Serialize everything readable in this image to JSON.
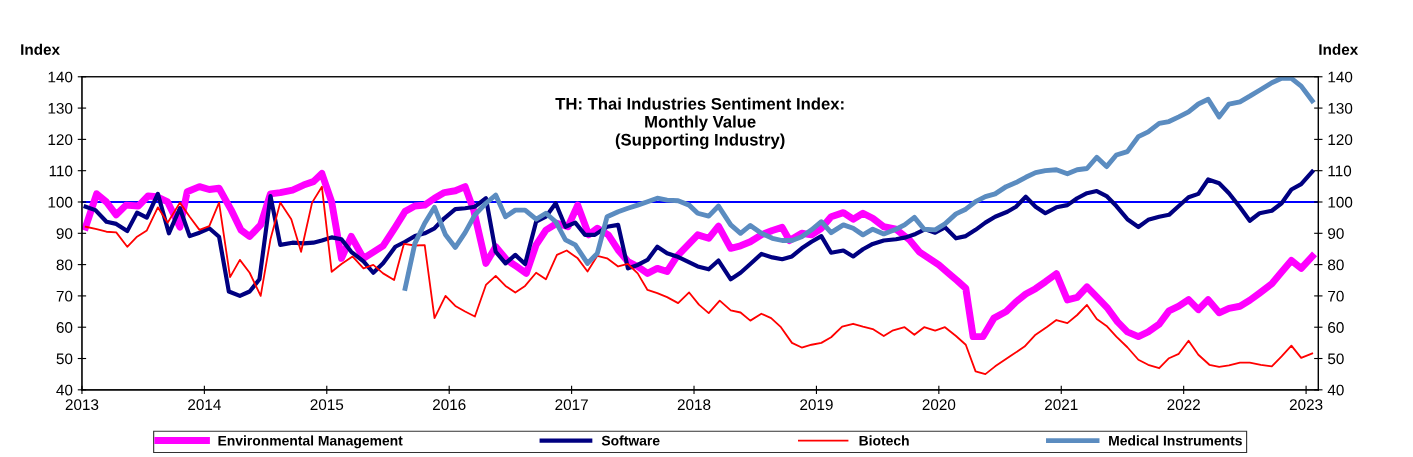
{
  "chart_data": {
    "type": "line",
    "title": "TH: Thai Industries Sentiment Index:\nMonthly Value\n(Supporting Industry)",
    "ylabel": "Index",
    "y2label": "Index",
    "xlim": [
      2013,
      2023.1
    ],
    "xticks": [
      2013,
      2014,
      2015,
      2016,
      2017,
      2018,
      2019,
      2020,
      2021,
      2022,
      2023
    ],
    "ylim": [
      40,
      140
    ],
    "yticks": [
      40,
      50,
      60,
      70,
      80,
      90,
      100,
      110,
      120,
      130,
      140
    ],
    "y2lim": [
      40,
      140
    ],
    "y2ticks": [
      40,
      50,
      60,
      70,
      80,
      90,
      100,
      110,
      120,
      130,
      140
    ],
    "grid": false,
    "legend": "bottom",
    "marker": "none",
    "line_style": "solid",
    "ref_lines": [
      {
        "axis": "y",
        "value": 100,
        "color": "#0000ff"
      }
    ],
    "series": [
      {
        "name": "Environmental Management",
        "color": "#ff00ff",
        "x": [
          2013.03,
          2013.12,
          2013.2,
          2013.28,
          2013.36,
          2013.46,
          2013.54,
          2013.61,
          2013.7,
          2013.8,
          2013.86,
          2013.96,
          2014.04,
          2014.12,
          2014.22,
          2014.3,
          2014.37,
          2014.46,
          2014.54,
          2014.62,
          2014.72,
          2014.81,
          2014.89,
          2014.96,
          2015.04,
          2015.12,
          2015.2,
          2015.3,
          2015.38,
          2015.46,
          2015.56,
          2015.64,
          2015.72,
          2015.8,
          2015.88,
          2015.96,
          2016.05,
          2016.13,
          2016.2,
          2016.3,
          2016.38,
          2016.47,
          2016.55,
          2016.63,
          2016.71,
          2016.79,
          2016.88,
          2016.97,
          2017.05,
          2017.14,
          2017.21,
          2017.3,
          2017.38,
          2017.46,
          2017.54,
          2017.62,
          2017.7,
          2017.78,
          2017.86,
          2018.03,
          2018.12,
          2018.2,
          2018.3,
          2018.38,
          2018.46,
          2018.55,
          2018.64,
          2018.72,
          2018.78,
          2018.88,
          2018.96,
          2019.04,
          2019.12,
          2019.22,
          2019.3,
          2019.38,
          2019.46,
          2019.55,
          2019.65,
          2019.76,
          2019.84,
          2019.92,
          2020.0,
          2020.08,
          2020.15,
          2020.22,
          2020.28,
          2020.36,
          2020.45,
          2020.55,
          2020.63,
          2020.71,
          2020.79,
          2020.87,
          2020.96,
          2021.05,
          2021.13,
          2021.21,
          2021.29,
          2021.38,
          2021.46,
          2021.54,
          2021.63,
          2021.71,
          2021.8,
          2021.88,
          2021.96,
          2022.04,
          2022.12,
          2022.2,
          2022.29,
          2022.37,
          2022.46,
          2022.54,
          2022.62,
          2022.72,
          2022.8,
          2022.88,
          2022.96,
          2023.05
        ],
        "values": [
          92,
          102.6,
          100,
          95.9,
          99,
          98.7,
          101.9,
          101.7,
          100,
          92,
          103.3,
          104.9,
          104,
          104.4,
          97.4,
          91,
          89,
          92.7,
          102.6,
          103,
          103.8,
          105.4,
          106.5,
          109.1,
          100,
          82,
          89,
          82,
          84,
          86,
          92,
          97,
          98.7,
          99,
          101.2,
          103,
          103.6,
          104.9,
          97.4,
          80.4,
          85.7,
          81.5,
          79.4,
          77.2,
          86.3,
          91,
          93.2,
          92.1,
          99,
          89.5,
          91.6,
          89.5,
          84.7,
          81,
          79.4,
          77.2,
          78.8,
          77.8,
          82.6,
          89.5,
          88.4,
          92.3,
          85.2,
          86,
          87.3,
          89.5,
          90.9,
          91.9,
          87.7,
          90,
          89.5,
          91.6,
          95.3,
          96.6,
          94.5,
          96.4,
          94.8,
          92.1,
          91.3,
          87.9,
          84.1,
          82,
          79.9,
          77.2,
          74.9,
          72.4,
          57,
          57,
          62.9,
          65,
          68.1,
          70.6,
          72.3,
          74.5,
          77.1,
          68.7,
          69.5,
          72.9,
          69.7,
          66,
          61.7,
          58.5,
          57,
          58.5,
          61,
          65.2,
          66.7,
          68.8,
          65.6,
          68.8,
          64.6,
          66,
          66.7,
          68.6,
          70.9,
          73.9,
          77.6,
          81.3,
          78.8,
          82.6
        ]
      },
      {
        "name": "Software",
        "color": "#000080",
        "x": [
          2013.03,
          2013.11,
          2013.2,
          2013.28,
          2013.37,
          2013.45,
          2013.53,
          2013.62,
          2013.71,
          2013.8,
          2013.88,
          2013.96,
          2014.04,
          2014.12,
          2014.2,
          2014.29,
          2014.37,
          2014.45,
          2014.54,
          2014.62,
          2014.72,
          2014.81,
          2014.89,
          2014.96,
          2015.04,
          2015.12,
          2015.2,
          2015.3,
          2015.38,
          2015.46,
          2015.56,
          2015.64,
          2015.72,
          2015.8,
          2015.88,
          2015.96,
          2016.05,
          2016.13,
          2016.21,
          2016.3,
          2016.38,
          2016.46,
          2016.54,
          2016.62,
          2016.71,
          2016.79,
          2016.87,
          2016.95,
          2017.03,
          2017.11,
          2017.19,
          2017.29,
          2017.38,
          2017.46,
          2017.54,
          2017.62,
          2017.7,
          2017.78,
          2017.86,
          2018.03,
          2018.12,
          2018.2,
          2018.3,
          2018.38,
          2018.46,
          2018.55,
          2018.64,
          2018.72,
          2018.8,
          2018.88,
          2018.96,
          2019.04,
          2019.12,
          2019.22,
          2019.3,
          2019.38,
          2019.46,
          2019.55,
          2019.65,
          2019.73,
          2019.81,
          2019.89,
          2019.97,
          2020.05,
          2020.14,
          2020.22,
          2020.3,
          2020.38,
          2020.46,
          2020.56,
          2020.63,
          2020.71,
          2020.79,
          2020.87,
          2020.96,
          2021.05,
          2021.13,
          2021.21,
          2021.29,
          2021.37,
          2021.45,
          2021.54,
          2021.63,
          2021.71,
          2021.8,
          2021.88,
          2021.96,
          2022.04,
          2022.12,
          2022.2,
          2022.29,
          2022.37,
          2022.46,
          2022.54,
          2022.62,
          2022.72,
          2022.8,
          2022.88,
          2022.96,
          2023.05
        ],
        "values": [
          98.5,
          97.4,
          93.7,
          93,
          90.7,
          96.6,
          95,
          102.6,
          90,
          98,
          89.1,
          90.2,
          91.6,
          88.9,
          71.4,
          70,
          71.4,
          75.3,
          101.9,
          86.3,
          87,
          86.8,
          87,
          87.7,
          88.7,
          88.1,
          84.1,
          81,
          77.4,
          80.4,
          85.7,
          87.3,
          89.1,
          90,
          91.6,
          94.8,
          97.7,
          98,
          98.5,
          101.2,
          84.1,
          80.4,
          83.1,
          80.2,
          93.7,
          95.3,
          99.6,
          92.1,
          93.4,
          89.5,
          89.5,
          92.1,
          92.7,
          78.8,
          79.9,
          81.5,
          85.7,
          83.6,
          82.6,
          79.4,
          78.5,
          81.3,
          75.3,
          77.4,
          80.2,
          83.4,
          82.3,
          81.7,
          82.6,
          85.2,
          87.3,
          89.1,
          83.8,
          84.5,
          82.6,
          84.9,
          86.6,
          87.7,
          88.1,
          88.7,
          89.8,
          91.3,
          90.2,
          91.9,
          88.4,
          89.1,
          91.1,
          93.4,
          95.3,
          96.9,
          98.5,
          101.7,
          98.5,
          96.4,
          98.3,
          99,
          101.2,
          102.8,
          103.5,
          101.9,
          98.7,
          94.5,
          92,
          94.3,
          95.3,
          95.9,
          98.7,
          101.5,
          102.6,
          107.2,
          106,
          102.8,
          98.3,
          94,
          96.4,
          97.2,
          99.6,
          104,
          105.7,
          109.7
        ]
      },
      {
        "name": "Biotech",
        "color": "#ff0000",
        "x": [
          2013.03,
          2013.12,
          2013.2,
          2013.28,
          2013.37,
          2013.45,
          2013.53,
          2013.62,
          2013.7,
          2013.8,
          2013.88,
          2013.96,
          2014.04,
          2014.12,
          2014.21,
          2014.29,
          2014.37,
          2014.46,
          2014.54,
          2014.62,
          2014.71,
          2014.79,
          2014.88,
          2014.96,
          2015.04,
          2015.12,
          2015.21,
          2015.3,
          2015.38,
          2015.46,
          2015.55,
          2015.63,
          2015.72,
          2015.8,
          2015.88,
          2015.97,
          2016.05,
          2016.13,
          2016.21,
          2016.3,
          2016.38,
          2016.46,
          2016.54,
          2016.62,
          2016.71,
          2016.79,
          2016.88,
          2016.96,
          2017.05,
          2017.13,
          2017.21,
          2017.29,
          2017.38,
          2017.46,
          2017.54,
          2017.62,
          2017.7,
          2017.78,
          2017.87,
          2017.96,
          2018.04,
          2018.12,
          2018.21,
          2018.3,
          2018.38,
          2018.46,
          2018.55,
          2018.63,
          2018.71,
          2018.8,
          2018.88,
          2018.96,
          2019.04,
          2019.12,
          2019.21,
          2019.3,
          2019.38,
          2019.46,
          2019.55,
          2019.62,
          2019.72,
          2019.8,
          2019.88,
          2019.97,
          2020.05,
          2020.14,
          2020.22,
          2020.3,
          2020.38,
          2020.46,
          2020.6,
          2020.7,
          2020.79,
          2020.88,
          2020.96,
          2021.05,
          2021.13,
          2021.21,
          2021.29,
          2021.37,
          2021.45,
          2021.54,
          2021.63,
          2021.71,
          2021.8,
          2021.88,
          2021.96,
          2022.04,
          2022.12,
          2022.21,
          2022.29,
          2022.37,
          2022.46,
          2022.54,
          2022.63,
          2022.72,
          2022.8,
          2022.88,
          2022.96,
          2023.05
        ],
        "values": [
          92.1,
          91.3,
          90.5,
          90.3,
          85.7,
          88.9,
          90.9,
          98.3,
          93.4,
          99.8,
          95.3,
          91.1,
          92.3,
          99.8,
          76,
          81.5,
          77.4,
          70,
          88.1,
          99.8,
          94.5,
          84.1,
          99.8,
          104.9,
          77.7,
          80.2,
          82.6,
          78.8,
          79.9,
          77.2,
          75.1,
          86.6,
          86.1,
          86.2,
          62.9,
          70,
          66.8,
          65,
          63.4,
          73.5,
          76.4,
          73.2,
          71.1,
          73.2,
          77.4,
          75.3,
          83.1,
          84.5,
          82,
          77.8,
          82.8,
          82,
          79.4,
          80.2,
          77.2,
          71.9,
          70.9,
          69.6,
          67.7,
          71.1,
          67.2,
          64.5,
          68.5,
          65.4,
          64.7,
          62.1,
          64.3,
          62.9,
          60,
          55,
          53.5,
          54.4,
          55,
          56.8,
          60.2,
          61.1,
          60.2,
          59.4,
          57.2,
          58.9,
          60,
          57.6,
          60,
          58.9,
          60,
          57.2,
          54.4,
          45.9,
          45,
          47.5,
          51.2,
          53.8,
          57.6,
          60,
          62.3,
          61.3,
          63.9,
          67.1,
          62.6,
          60.4,
          57,
          53.6,
          49.6,
          48,
          46.9,
          50.1,
          51.5,
          55.7,
          51.2,
          48,
          47.3,
          47.8,
          48.7,
          48.7,
          48,
          47.5,
          50.7,
          54.1,
          50.2,
          51.6
        ]
      },
      {
        "name": "Medical Instruments",
        "color": "#5b8cc0",
        "x": [
          2015.64,
          2015.72,
          2015.8,
          2015.88,
          2015.97,
          2016.05,
          2016.13,
          2016.21,
          2016.3,
          2016.38,
          2016.46,
          2016.54,
          2016.62,
          2016.71,
          2016.79,
          2016.87,
          2016.95,
          2017.03,
          2017.13,
          2017.21,
          2017.29,
          2017.38,
          2017.46,
          2017.54,
          2017.62,
          2017.7,
          2017.78,
          2017.87,
          2017.96,
          2018.03,
          2018.12,
          2018.2,
          2018.3,
          2018.38,
          2018.46,
          2018.55,
          2018.64,
          2018.72,
          2018.8,
          2018.88,
          2018.96,
          2019.04,
          2019.12,
          2019.22,
          2019.3,
          2019.38,
          2019.46,
          2019.55,
          2019.65,
          2019.72,
          2019.8,
          2019.88,
          2019.97,
          2020.05,
          2020.14,
          2020.22,
          2020.3,
          2020.38,
          2020.46,
          2020.55,
          2020.63,
          2020.71,
          2020.79,
          2020.87,
          2020.96,
          2021.05,
          2021.13,
          2021.21,
          2021.29,
          2021.37,
          2021.45,
          2021.54,
          2021.63,
          2021.71,
          2021.8,
          2021.88,
          2021.96,
          2022.04,
          2022.12,
          2022.2,
          2022.29,
          2022.37,
          2022.46,
          2022.54,
          2022.62,
          2022.72,
          2022.8,
          2022.88,
          2022.96,
          2023.05
        ],
        "values": [
          72.4,
          86.8,
          93.2,
          98.3,
          89.5,
          85.5,
          90.2,
          95.9,
          99.6,
          102.2,
          95.3,
          97.4,
          97.4,
          94.5,
          96.4,
          93.7,
          87.9,
          86.3,
          80.4,
          83.6,
          95.3,
          96.9,
          98,
          99,
          100.1,
          101.2,
          100.6,
          100.4,
          99,
          96.4,
          95.5,
          98.7,
          92.7,
          90,
          92.5,
          90,
          88.4,
          87.7,
          87.7,
          88.9,
          91.1,
          93.7,
          90.2,
          92.7,
          91.6,
          89.5,
          91.3,
          89.8,
          91.3,
          92.7,
          95.1,
          91.3,
          91.1,
          93,
          96.2,
          97.7,
          100.1,
          101.7,
          102.6,
          104.9,
          106.2,
          107.9,
          109.4,
          110,
          110.3,
          109,
          110.3,
          110.7,
          114.3,
          111.3,
          115,
          116.1,
          120.9,
          122.4,
          125.1,
          125.7,
          127.2,
          128.8,
          131.3,
          132.8,
          127.2,
          131.3,
          132,
          133.8,
          135.7,
          138.1,
          139.5,
          139.5,
          137,
          132.3
        ]
      }
    ]
  }
}
